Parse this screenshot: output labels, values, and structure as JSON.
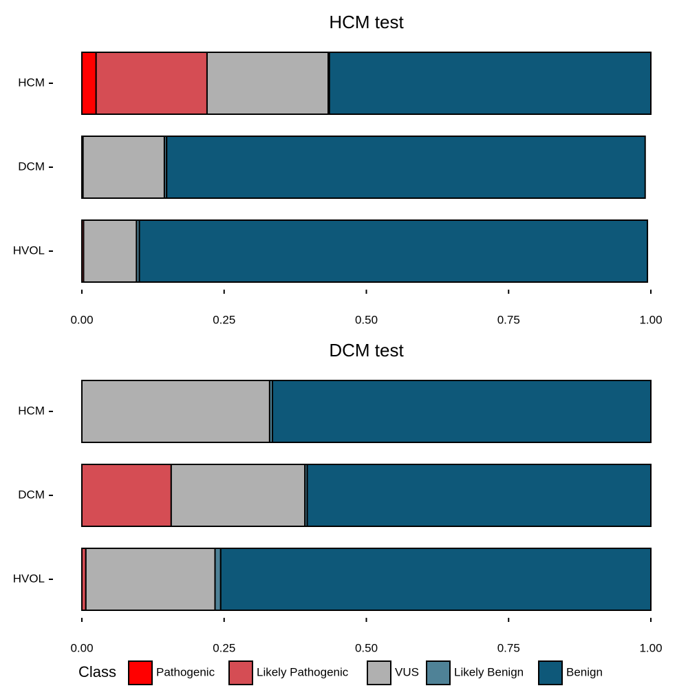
{
  "chart_data": [
    {
      "type": "bar",
      "orientation": "horizontal",
      "stacked": true,
      "title": "HCM test",
      "categories": [
        "HCM",
        "DCM",
        "HVOL"
      ],
      "xlim": [
        0,
        1
      ],
      "x_ticks": [
        "0.00",
        "0.25",
        "0.50",
        "0.75",
        "1.00"
      ],
      "x_tick_values": [
        0,
        0.25,
        0.5,
        0.75,
        1
      ],
      "series": [
        {
          "name": "Pathogenic",
          "values": [
            0.025,
            0.0,
            0.0
          ]
        },
        {
          "name": "Likely Pathogenic",
          "values": [
            0.195,
            0.002,
            0.003
          ]
        },
        {
          "name": "VUS",
          "values": [
            0.213,
            0.143,
            0.093
          ]
        },
        {
          "name": "Likely Benign",
          "values": [
            0.002,
            0.004,
            0.005
          ]
        },
        {
          "name": "Benign",
          "values": [
            0.565,
            0.841,
            0.893
          ]
        }
      ]
    },
    {
      "type": "bar",
      "orientation": "horizontal",
      "stacked": true,
      "title": "DCM test",
      "categories": [
        "HCM",
        "DCM",
        "HVOL"
      ],
      "xlim": [
        0,
        1
      ],
      "x_ticks": [
        "0.00",
        "0.25",
        "0.50",
        "0.75",
        "1.00"
      ],
      "x_tick_values": [
        0,
        0.25,
        0.5,
        0.75,
        1
      ],
      "series": [
        {
          "name": "Pathogenic",
          "values": [
            0.0,
            0.0,
            0.0
          ]
        },
        {
          "name": "Likely Pathogenic",
          "values": [
            0.0,
            0.157,
            0.007
          ]
        },
        {
          "name": "VUS",
          "values": [
            0.33,
            0.235,
            0.227
          ]
        },
        {
          "name": "Likely Benign",
          "values": [
            0.005,
            0.004,
            0.01
          ]
        },
        {
          "name": "Benign",
          "values": [
            0.665,
            0.604,
            0.756
          ]
        }
      ]
    }
  ],
  "legend": {
    "title": "Class",
    "position": "bottom",
    "items": [
      {
        "label": "Pathogenic",
        "color": "#ff0000"
      },
      {
        "label": "Likely Pathogenic",
        "color": "#d54d54"
      },
      {
        "label": "VUS",
        "color": "#b0b0b0"
      },
      {
        "label": "Likely Benign",
        "color": "#4f8297"
      },
      {
        "label": "Benign",
        "color": "#0e5879"
      }
    ]
  }
}
